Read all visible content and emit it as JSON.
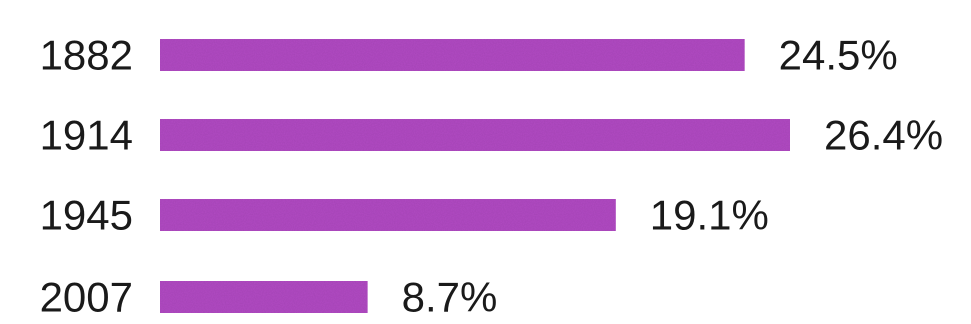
{
  "chart_data": {
    "type": "bar",
    "orientation": "horizontal",
    "categories": [
      "1882",
      "1914",
      "1945",
      "2007"
    ],
    "values": [
      24.5,
      26.4,
      19.1,
      8.7
    ],
    "value_labels": [
      "24.5%",
      "26.4%",
      "19.1%",
      "8.7%"
    ],
    "unit": "%",
    "xlim": [
      0,
      26.4
    ],
    "grid": false,
    "legend": "none",
    "bar_color": "#b24bc4"
  }
}
